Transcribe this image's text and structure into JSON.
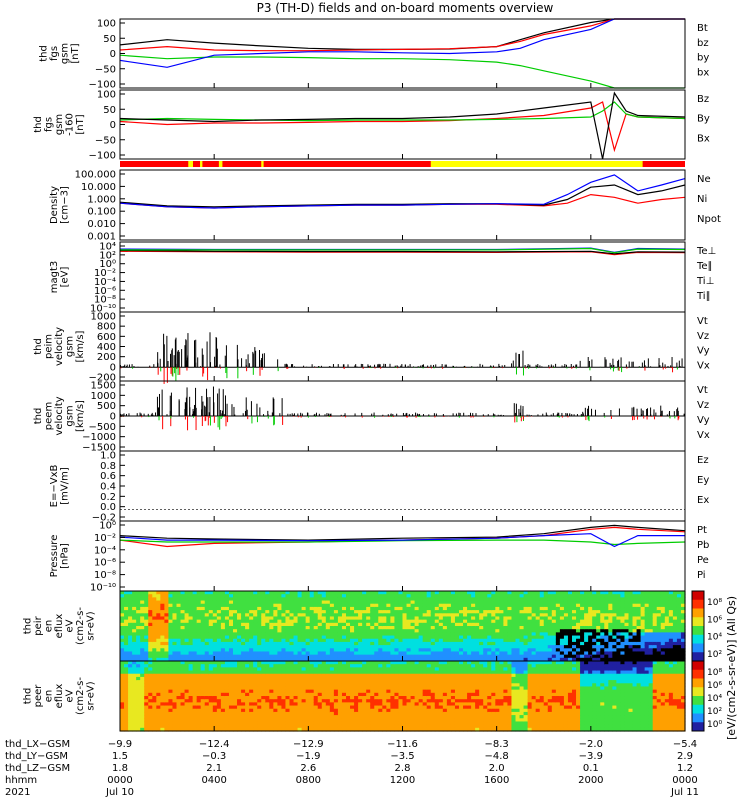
{
  "title": "P3 (TH-D) fields and on-board moments overview",
  "colors": {
    "black": "#000000",
    "red": "#ff0000",
    "green": "#00cc00",
    "blue": "#0000ff",
    "yellow": "#ffff00"
  },
  "chart_data": [
    {
      "type": "line",
      "ylabel_lines": [
        "thd",
        "fgs",
        "gsm",
        "[nT]"
      ],
      "yticks": [
        "100",
        "50",
        "0",
        "−50",
        "−100"
      ],
      "legend": [
        {
          "name": "Bt",
          "color": "#000000"
        },
        {
          "name": "bz",
          "color": "#ff0000"
        },
        {
          "name": "by",
          "color": "#00cc00"
        },
        {
          "name": "bx",
          "color": "#0000ff"
        }
      ],
      "ylim": [
        -100,
        100
      ],
      "x": [
        0,
        2,
        4,
        6,
        8,
        10,
        12,
        14,
        16,
        17,
        18,
        20,
        21,
        22,
        23,
        24
      ],
      "series": [
        {
          "name": "Bt",
          "values": [
            25,
            40,
            30,
            22,
            15,
            12,
            12,
            13,
            20,
            40,
            60,
            90,
            100,
            100,
            100,
            100
          ]
        },
        {
          "name": "bz",
          "values": [
            10,
            20,
            10,
            8,
            8,
            10,
            12,
            14,
            20,
            35,
            55,
            80,
            100,
            100,
            100,
            100
          ]
        },
        {
          "name": "by",
          "values": [
            -5,
            -15,
            -10,
            -10,
            -12,
            -15,
            -15,
            -18,
            -25,
            -35,
            -50,
            -80,
            -100,
            -100,
            -100,
            -100
          ]
        },
        {
          "name": "bx",
          "values": [
            -20,
            -40,
            -5,
            0,
            5,
            5,
            2,
            0,
            5,
            15,
            40,
            70,
            100,
            100,
            100,
            100
          ]
        }
      ]
    },
    {
      "type": "line",
      "ylabel_lines": [
        "thd",
        "fgs",
        "gsm",
        "-160",
        "[nT]"
      ],
      "yticks": [
        "100",
        "50",
        "0",
        "−50",
        "−100"
      ],
      "legend": [
        {
          "name": "Bz",
          "color": "#ff0000"
        },
        {
          "name": "By",
          "color": "#00cc00"
        },
        {
          "name": "Bx",
          "color": "#000000"
        }
      ],
      "ylim": [
        -130,
        100
      ],
      "x": [
        0,
        2,
        4,
        6,
        8,
        10,
        12,
        14,
        16,
        18,
        20,
        20.5,
        21,
        21.5,
        22,
        24
      ],
      "series": [
        {
          "name": "Bz",
          "values": [
            -5,
            -15,
            -10,
            -10,
            -8,
            -5,
            -5,
            -2,
            5,
            15,
            40,
            60,
            -100,
            20,
            10,
            5
          ]
        },
        {
          "name": "By",
          "values": [
            0,
            5,
            2,
            0,
            -2,
            0,
            0,
            0,
            2,
            5,
            10,
            30,
            60,
            20,
            10,
            5
          ]
        },
        {
          "name": "Bx",
          "values": [
            5,
            0,
            -5,
            0,
            2,
            5,
            5,
            10,
            20,
            40,
            60,
            -130,
            90,
            30,
            15,
            10
          ]
        }
      ]
    },
    {
      "type": "line",
      "ylabel_lines": [
        "Density",
        "[cm−3]"
      ],
      "yticks": [
        "100.000",
        "10.000",
        "1.000",
        "0.100",
        "0.010",
        "0.001"
      ],
      "legend": [
        {
          "name": "Ne",
          "color": "#ff0000"
        },
        {
          "name": "Ni",
          "color": "#000000"
        },
        {
          "name": "Npot",
          "color": "#0000ff"
        }
      ],
      "ylim": [
        0.001,
        500
      ],
      "scale": "log",
      "x": [
        0,
        2,
        4,
        6,
        8,
        10,
        12,
        14,
        16,
        18,
        19,
        20,
        21,
        22,
        23,
        24
      ],
      "series": [
        {
          "name": "Ne",
          "values": [
            1,
            0.5,
            0.4,
            0.5,
            0.6,
            0.7,
            0.7,
            0.8,
            0.8,
            0.6,
            1,
            5,
            3,
            1,
            2,
            3
          ]
        },
        {
          "name": "Ni",
          "values": [
            1.2,
            0.6,
            0.5,
            0.6,
            0.7,
            0.8,
            0.8,
            0.9,
            0.9,
            0.7,
            2,
            20,
            30,
            5,
            10,
            30
          ]
        },
        {
          "name": "Npot",
          "values": [
            1,
            0.5,
            0.4,
            0.5,
            0.6,
            0.7,
            0.7,
            0.8,
            0.9,
            0.8,
            5,
            50,
            200,
            10,
            30,
            100
          ]
        }
      ]
    },
    {
      "type": "line",
      "ylabel_lines": [
        "magt3",
        "[eV]"
      ],
      "yticks": [
        "10⁴",
        "10²",
        "10⁰",
        "10⁻²",
        "10⁻⁴",
        "10⁻⁶",
        "10⁻⁸",
        "10⁻¹⁰"
      ],
      "legend": [
        {
          "name": "Te⊥",
          "color": "#ff0000"
        },
        {
          "name": "Te∥",
          "color": "#000000"
        },
        {
          "name": "Ti⊥",
          "color": "#0000ff"
        },
        {
          "name": "Ti∥",
          "color": "#00cc00"
        }
      ],
      "ylim": [
        1e-10,
        100000.0
      ],
      "scale": "log",
      "x": [
        0,
        4,
        8,
        12,
        16,
        20,
        21,
        22,
        24
      ],
      "series": [
        {
          "name": "Te⊥",
          "values": [
            1000,
            800,
            700,
            700,
            600,
            800,
            200,
            600,
            500
          ]
        },
        {
          "name": "Te∥",
          "values": [
            1500,
            1000,
            900,
            900,
            800,
            1000,
            300,
            800,
            700
          ]
        },
        {
          "name": "Ti⊥",
          "values": [
            3000,
            2500,
            2500,
            2500,
            2500,
            5000,
            600,
            4000,
            3000
          ]
        },
        {
          "name": "Ti∥",
          "values": [
            2000,
            2000,
            2000,
            2000,
            2000,
            4000,
            500,
            3000,
            2500
          ]
        }
      ]
    },
    {
      "type": "line",
      "ylabel_lines": [
        "thd",
        "peim",
        "velocity",
        "gsm",
        "[km/s]"
      ],
      "yticks": [
        "1000",
        "800",
        "600",
        "400",
        "200",
        "0",
        "−200"
      ],
      "legend": [
        {
          "name": "Vt",
          "color": "#000000"
        },
        {
          "name": "Vz",
          "color": "#ff0000"
        },
        {
          "name": "Vy",
          "color": "#00cc00"
        },
        {
          "name": "Vx",
          "color": "#0000ff"
        }
      ],
      "ylim": [
        -250,
        1000
      ],
      "note": "bursty, peaks near 800 km/s around 02:00–04:00"
    },
    {
      "type": "line",
      "ylabel_lines": [
        "thd",
        "peem",
        "velocity",
        "gsm",
        "[km/s]"
      ],
      "yticks": [
        "1500",
        "1000",
        "500",
        "0",
        "−500",
        "−1000",
        "−1500"
      ],
      "legend": [
        {
          "name": "Vt",
          "color": "#000000"
        },
        {
          "name": "Vz",
          "color": "#ff0000"
        },
        {
          "name": "Vy",
          "color": "#00cc00"
        },
        {
          "name": "Vx",
          "color": "#0000ff"
        }
      ],
      "ylim": [
        -1500,
        1500
      ]
    },
    {
      "type": "line",
      "ylabel_lines": [
        "E=−VxB",
        "[mV/m]"
      ],
      "yticks": [
        "1.0",
        "0.8",
        "0.6",
        "0.4",
        "0.2",
        "0.0",
        "−0.2"
      ],
      "legend": [
        {
          "name": "Ez",
          "color": "#ff0000"
        },
        {
          "name": "Ey",
          "color": "#00cc00"
        },
        {
          "name": "Ex",
          "color": "#0000ff"
        }
      ],
      "ylim": [
        -0.2,
        1.0
      ]
    },
    {
      "type": "line",
      "ylabel_lines": [
        "Pressure",
        "[nPa]"
      ],
      "yticks": [
        "10⁰",
        "10⁻²",
        "10⁻⁴",
        "10⁻⁶",
        "10⁻⁸",
        "10⁻¹⁰"
      ],
      "legend": [
        {
          "name": "Pt",
          "color": "#000000"
        },
        {
          "name": "Pb",
          "color": "#ff0000"
        },
        {
          "name": "Pe",
          "color": "#00cc00"
        },
        {
          "name": "Pi",
          "color": "#0000ff"
        }
      ],
      "ylim": [
        1e-10,
        10
      ],
      "scale": "log",
      "x": [
        0,
        2,
        4,
        8,
        12,
        16,
        18,
        20,
        21,
        22,
        24
      ],
      "series": [
        {
          "name": "Pt",
          "values": [
            0.05,
            0.02,
            0.015,
            0.01,
            0.02,
            0.03,
            0.1,
            1,
            2,
            1,
            0.3
          ]
        },
        {
          "name": "Pb",
          "values": [
            0.01,
            0.001,
            0.003,
            0.005,
            0.01,
            0.02,
            0.05,
            0.5,
            1,
            0.5,
            0.2
          ]
        },
        {
          "name": "Pe",
          "values": [
            0.01,
            0.005,
            0.005,
            0.005,
            0.008,
            0.01,
            0.01,
            0.005,
            0.002,
            0.003,
            0.005
          ]
        },
        {
          "name": "Pi",
          "values": [
            0.03,
            0.01,
            0.01,
            0.008,
            0.01,
            0.02,
            0.05,
            0.1,
            0.001,
            0.05,
            0.05
          ]
        }
      ]
    },
    {
      "type": "heatmap",
      "ylabel_lines": [
        "thd",
        "peir",
        "en",
        "eflux",
        "eV",
        "(cm2-s-",
        "sr-eV)"
      ],
      "yticks": [
        "10000",
        "1000",
        "100",
        "10"
      ],
      "cbar_ticks": [
        "10⁸",
        "10⁶",
        "10⁴",
        "10²"
      ]
    },
    {
      "type": "heatmap",
      "ylabel_lines": [
        "thd",
        "peer",
        "en",
        "eflux",
        "eV",
        "(cm2-s-",
        "sr-eV)"
      ],
      "yticks": [
        "10000",
        "1000",
        "100",
        "10"
      ],
      "cbar_ticks": [
        "10⁸",
        "10⁶",
        "10⁴",
        "10²",
        "10⁰"
      ]
    }
  ],
  "colorbar_label": "[eV/(cm2-s-sr-eV)] (All Qs)",
  "xaxis": {
    "rows": [
      {
        "label": "thd_LX−GSM",
        "values": [
          "−9.9",
          "−12.4",
          "−12.9",
          "−11.6",
          "−8.3",
          "−2.0",
          "−5.4"
        ]
      },
      {
        "label": "thd_LY−GSM",
        "values": [
          "1.5",
          "−0.3",
          "−1.9",
          "−3.5",
          "−4.8",
          "−3.9",
          "2.9"
        ]
      },
      {
        "label": "thd_LZ−GSM",
        "values": [
          "1.8",
          "2.1",
          "2.6",
          "2.8",
          "2.0",
          "0.1",
          "1.2"
        ]
      },
      {
        "label": "hhmm",
        "values": [
          "0000",
          "0400",
          "0800",
          "1200",
          "1600",
          "2000",
          "0000"
        ]
      }
    ],
    "year": "2021",
    "dates": [
      "Jul 10",
      "Jul 11"
    ]
  }
}
